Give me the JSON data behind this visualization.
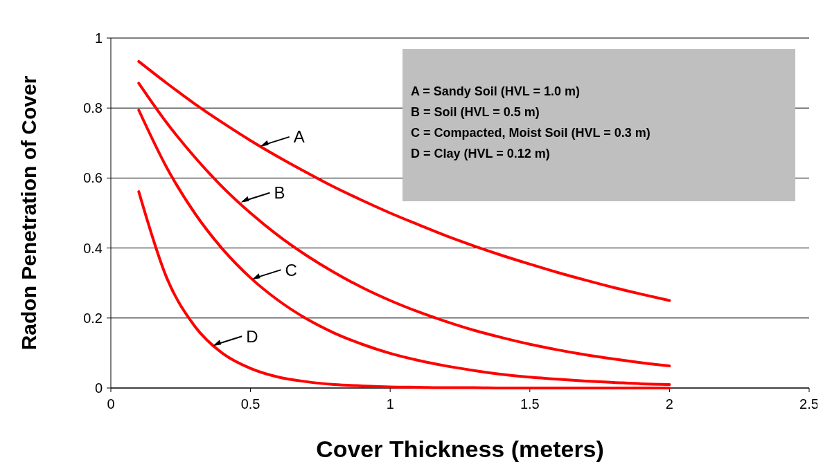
{
  "chart_data": {
    "type": "line",
    "xlabel": "Cover Thickness (meters)",
    "ylabel": "Radon Penetration of Cover",
    "x": [
      0.1,
      0.2,
      0.3,
      0.4,
      0.5,
      0.6,
      0.7,
      0.8,
      0.9,
      1.0,
      1.1,
      1.2,
      1.3,
      1.4,
      1.5,
      1.6,
      1.7,
      1.8,
      1.9,
      2.0
    ],
    "series": [
      {
        "color": "#ff0000",
        "values": [
          0.933,
          0.871,
          0.812,
          0.758,
          0.707,
          0.66,
          0.616,
          0.574,
          0.536,
          0.5,
          0.467,
          0.435,
          0.406,
          0.379,
          0.354,
          0.33,
          0.308,
          0.287,
          0.268,
          0.25
        ]
      },
      {
        "color": "#ff0000",
        "values": [
          0.871,
          0.758,
          0.66,
          0.574,
          0.5,
          0.435,
          0.379,
          0.33,
          0.287,
          0.25,
          0.218,
          0.19,
          0.165,
          0.144,
          0.125,
          0.109,
          0.095,
          0.083,
          0.072,
          0.063
        ]
      },
      {
        "color": "#ff0000",
        "values": [
          0.794,
          0.63,
          0.5,
          0.397,
          0.315,
          0.25,
          0.198,
          0.157,
          0.125,
          0.099,
          0.079,
          0.063,
          0.05,
          0.039,
          0.031,
          0.025,
          0.02,
          0.016,
          0.012,
          0.01
        ]
      },
      {
        "color": "#ff0000",
        "values": [
          0.561,
          0.315,
          0.177,
          0.099,
          0.056,
          0.031,
          0.018,
          0.01,
          0.006,
          0.003,
          0.002,
          0.001,
          0.001,
          0.0,
          0.0,
          0.0,
          0.0,
          0.0,
          0.0,
          0.0
        ]
      }
    ],
    "xlim": [
      0,
      2.5
    ],
    "xticks": [
      0,
      0.5,
      1,
      1.5,
      2,
      2.5
    ],
    "ylim": [
      0,
      1
    ],
    "yticks": [
      0,
      0.2,
      0.4,
      0.6,
      0.8,
      1
    ],
    "grid": "y",
    "marker": "none",
    "line_style": "solid",
    "annotations": [
      {
        "text": "A",
        "x": 0.53,
        "y": 0.69
      },
      {
        "text": "B",
        "x": 0.46,
        "y": 0.53
      },
      {
        "text": "C",
        "x": 0.5,
        "y": 0.31
      },
      {
        "text": "D",
        "x": 0.36,
        "y": 0.12
      },
      "A = Sandy Soil (HVL = 1.0 m)",
      "B = Soil (HVL = 0.5 m)",
      "C = Compacted, Moist Soil (HVL = 0.3 m)",
      "D = Clay (HVL = 0.12 m)"
    ]
  }
}
